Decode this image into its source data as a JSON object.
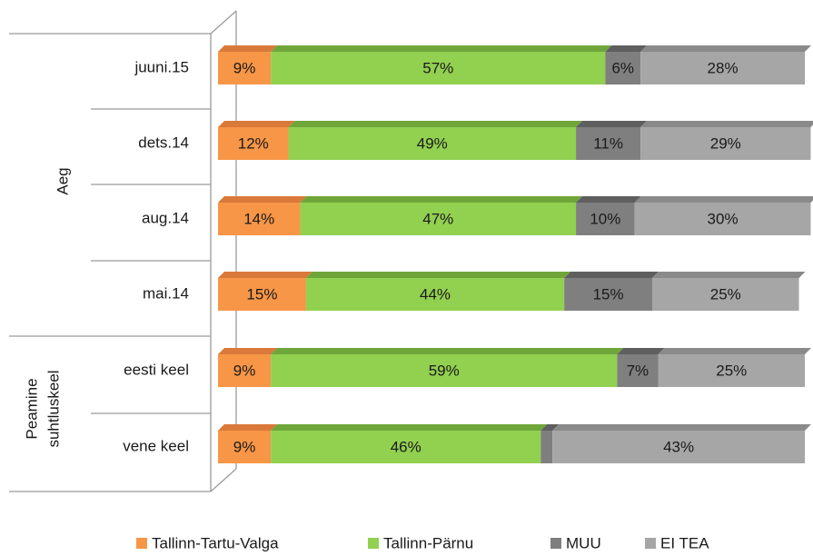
{
  "chart_data": {
    "type": "stacked-bar-horizontal",
    "categories": [
      "juuni.15",
      "dets.14",
      "aug.14",
      "mai.14",
      "eesti keel",
      "vene keel"
    ],
    "groups": [
      {
        "label_lines": [
          "Aeg"
        ],
        "categories": [
          0,
          1,
          2,
          3
        ]
      },
      {
        "label_lines": [
          "Peamine",
          "suhtluskeel"
        ],
        "categories": [
          4,
          5
        ]
      }
    ],
    "xlim": [
      0,
      100
    ],
    "legend": "bottom",
    "series": [
      {
        "name": "Tallinn-Tartu-Valga",
        "color": "#f79646",
        "top_color": "#d9793a",
        "label_color": "#1a1a1a",
        "values": [
          9,
          12,
          14,
          15,
          9,
          9
        ],
        "value_labels": [
          "9%",
          "12%",
          "14%",
          "15%",
          "9%",
          "9%"
        ]
      },
      {
        "name": "Tallinn-Pärnu",
        "color": "#92d050",
        "top_color": "#6fa63a",
        "label_color": "#1a1a1a",
        "values": [
          57,
          49,
          47,
          44,
          59,
          46
        ],
        "value_labels": [
          "57%",
          "49%",
          "47%",
          "44%",
          "59%",
          "46%"
        ]
      },
      {
        "name": "MUU",
        "color": "#7f7f7f",
        "top_color": "#5f5f5f",
        "label_color": "#ffffff",
        "values": [
          6,
          11,
          10,
          15,
          7,
          2
        ],
        "value_labels": [
          "6%",
          "11%",
          "10%",
          "15%",
          "7%",
          null
        ]
      },
      {
        "name": "EI TEA",
        "color": "#a6a6a6",
        "top_color": "#8a8a8a",
        "label_color": "#ffffff",
        "values": [
          28,
          29,
          30,
          25,
          25,
          43
        ],
        "value_labels": [
          "28%",
          "29%",
          "30%",
          "25%",
          "25%",
          "43%"
        ]
      }
    ]
  }
}
